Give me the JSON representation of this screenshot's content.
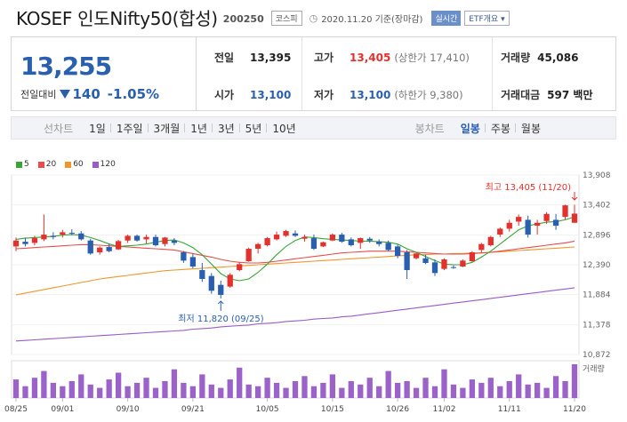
{
  "header": {
    "name": "KOSEF 인도Nifty50(합성)",
    "code": "200250",
    "market": "코스피",
    "date": "2020.11.20 기준(장마감)",
    "realtime": "실시간",
    "etf_info": "ETF개요 ▾"
  },
  "summary": {
    "price": "13,255",
    "change_label": "전일대비",
    "change": "140",
    "change_pct": "-1.05%",
    "prev_close_label": "전일",
    "prev_close": "13,395",
    "high_label": "고가",
    "high": "13,405",
    "upper_limit": "(상한가 17,410)",
    "volume_label": "거래량",
    "volume": "45,086",
    "open_label": "시가",
    "open": "13,100",
    "low_label": "저가",
    "low": "13,100",
    "lower_limit": "(하한가 9,380)",
    "amount_label": "거래대금",
    "amount": "597 백만"
  },
  "tabs": {
    "line_chart": "선차트",
    "line_periods": [
      "1일",
      "1주일",
      "3개월",
      "1년",
      "3년",
      "5년",
      "10년"
    ],
    "candle_chart": "봉차트",
    "candle_periods": [
      "일봉",
      "주봉",
      "월봉"
    ],
    "candle_selected": 0
  },
  "colors": {
    "up": "#e3312d",
    "down": "#2a5fb0",
    "ma5": "#3aa536",
    "ma20": "#e84d4d",
    "ma60": "#f0962c",
    "ma120": "#9a5bc7"
  },
  "chart_data": {
    "type": "candlestick",
    "legend": [
      "5",
      "20",
      "60",
      "120"
    ],
    "y_ticks": [
      "13,908",
      "13,402",
      "12,896",
      "12,390",
      "11,884",
      "11,378",
      "10,872"
    ],
    "y_range": [
      10872,
      13908
    ],
    "x_ticks": [
      {
        "label": "08/25",
        "index": 0
      },
      {
        "label": "09/01",
        "index": 5
      },
      {
        "label": "09/10",
        "index": 12
      },
      {
        "label": "09/21",
        "index": 19
      },
      {
        "label": "10/05",
        "index": 27
      },
      {
        "label": "10/15",
        "index": 34
      },
      {
        "label": "10/26",
        "index": 41
      },
      {
        "label": "11/02",
        "index": 46
      },
      {
        "label": "11/11",
        "index": 53
      },
      {
        "label": "11/20",
        "index": 60
      }
    ],
    "annotations": {
      "high": "최고 13,405 (11/20)",
      "low": "최저 11,820 (09/25)"
    },
    "volume_label": "거래량",
    "candles": [
      [
        12700,
        12850,
        12620,
        12800
      ],
      [
        12780,
        12850,
        12700,
        12740
      ],
      [
        12760,
        12880,
        12720,
        12840
      ],
      [
        12820,
        13240,
        12790,
        12900
      ],
      [
        12880,
        12940,
        12820,
        12860
      ],
      [
        12900,
        12980,
        12850,
        12940
      ],
      [
        12930,
        12990,
        12890,
        12920
      ],
      [
        12920,
        12960,
        12800,
        12820
      ],
      [
        12800,
        12830,
        12560,
        12580
      ],
      [
        12600,
        12700,
        12560,
        12680
      ],
      [
        12690,
        12750,
        12600,
        12620
      ],
      [
        12650,
        12810,
        12640,
        12790
      ],
      [
        12800,
        12900,
        12760,
        12880
      ],
      [
        12880,
        12900,
        12780,
        12800
      ],
      [
        12820,
        12900,
        12750,
        12860
      ],
      [
        12860,
        12900,
        12700,
        12720
      ],
      [
        12740,
        12860,
        12700,
        12850
      ],
      [
        12800,
        12840,
        12720,
        12760
      ],
      [
        12600,
        12620,
        12420,
        12460
      ],
      [
        12520,
        12580,
        12330,
        12360
      ],
      [
        12300,
        12420,
        12100,
        12150
      ],
      [
        12200,
        12250,
        11900,
        11950
      ],
      [
        12050,
        12120,
        11820,
        11880
      ],
      [
        12020,
        12250,
        12000,
        12220
      ],
      [
        12300,
        12430,
        12280,
        12400
      ],
      [
        12450,
        12680,
        12440,
        12660
      ],
      [
        12660,
        12760,
        12580,
        12740
      ],
      [
        12720,
        12860,
        12700,
        12840
      ],
      [
        12820,
        12950,
        12800,
        12900
      ],
      [
        12880,
        12980,
        12860,
        12960
      ],
      [
        12920,
        12970,
        12860,
        12880
      ],
      [
        12830,
        12900,
        12780,
        12860
      ],
      [
        12840,
        12900,
        12640,
        12660
      ],
      [
        12700,
        12780,
        12690,
        12770
      ],
      [
        12800,
        12920,
        12790,
        12900
      ],
      [
        12900,
        12930,
        12760,
        12780
      ],
      [
        12820,
        12850,
        12700,
        12720
      ],
      [
        12760,
        12850,
        12660,
        12840
      ],
      [
        12830,
        12860,
        12760,
        12800
      ],
      [
        12780,
        12820,
        12700,
        12740
      ],
      [
        12760,
        12800,
        12620,
        12640
      ],
      [
        12700,
        12730,
        12500,
        12540
      ],
      [
        12600,
        12640,
        12150,
        12300
      ],
      [
        12500,
        12600,
        12480,
        12580
      ],
      [
        12500,
        12560,
        12400,
        12420
      ],
      [
        12430,
        12480,
        12200,
        12250
      ],
      [
        12320,
        12500,
        12300,
        12480
      ],
      [
        12350,
        12380,
        12320,
        12340
      ],
      [
        12360,
        12480,
        12350,
        12460
      ],
      [
        12450,
        12620,
        12440,
        12600
      ],
      [
        12640,
        12760,
        12600,
        12740
      ],
      [
        12720,
        12880,
        12700,
        12860
      ],
      [
        12900,
        13020,
        12860,
        13000
      ],
      [
        13000,
        13150,
        12950,
        13100
      ],
      [
        13120,
        13240,
        13050,
        13200
      ],
      [
        13150,
        13220,
        12850,
        12900
      ],
      [
        13050,
        13150,
        12900,
        13100
      ],
      [
        13130,
        13280,
        13080,
        13250
      ],
      [
        13150,
        13250,
        12980,
        13050
      ],
      [
        13200,
        13405,
        13150,
        13395
      ],
      [
        13100,
        13405,
        13100,
        13255
      ]
    ],
    "ma5": [
      12820,
      12840,
      12850,
      12860,
      12870,
      12890,
      12900,
      12890,
      12850,
      12800,
      12740,
      12700,
      12710,
      12720,
      12740,
      12770,
      12800,
      12810,
      12760,
      12680,
      12560,
      12400,
      12240,
      12150,
      12120,
      12150,
      12260,
      12400,
      12560,
      12700,
      12800,
      12860,
      12850,
      12830,
      12820,
      12810,
      12800,
      12790,
      12790,
      12780,
      12770,
      12740,
      12660,
      12600,
      12530,
      12460,
      12400,
      12390,
      12390,
      12430,
      12520,
      12620,
      12740,
      12860,
      12980,
      13050,
      13080,
      13110,
      13120,
      13150,
      13200
    ],
    "ma20": [
      12660,
      12670,
      12680,
      12690,
      12700,
      12710,
      12720,
      12730,
      12730,
      12720,
      12710,
      12700,
      12690,
      12680,
      12670,
      12660,
      12650,
      12640,
      12610,
      12580,
      12550,
      12520,
      12480,
      12450,
      12430,
      12420,
      12420,
      12430,
      12450,
      12470,
      12490,
      12510,
      12530,
      12550,
      12570,
      12590,
      12600,
      12610,
      12620,
      12620,
      12620,
      12620,
      12610,
      12600,
      12590,
      12580,
      12570,
      12570,
      12570,
      12580,
      12590,
      12600,
      12620,
      12640,
      12660,
      12680,
      12700,
      12720,
      12740,
      12760,
      12790
    ],
    "ma60": [
      11880,
      11910,
      11940,
      11970,
      12000,
      12030,
      12060,
      12090,
      12120,
      12150,
      12170,
      12190,
      12210,
      12230,
      12250,
      12270,
      12290,
      12300,
      12310,
      12320,
      12330,
      12340,
      12350,
      12360,
      12370,
      12380,
      12390,
      12400,
      12410,
      12420,
      12430,
      12440,
      12450,
      12460,
      12470,
      12480,
      12490,
      12500,
      12510,
      12520,
      12530,
      12540,
      12550,
      12560,
      12560,
      12570,
      12570,
      12580,
      12580,
      12590,
      12590,
      12600,
      12610,
      12620,
      12630,
      12640,
      12650,
      12660,
      12670,
      12680,
      12690
    ],
    "ma120": [
      11100,
      11110,
      11120,
      11130,
      11140,
      11150,
      11160,
      11170,
      11180,
      11190,
      11200,
      11210,
      11220,
      11230,
      11240,
      11250,
      11260,
      11270,
      11280,
      11300,
      11310,
      11320,
      11340,
      11350,
      11360,
      11370,
      11390,
      11400,
      11410,
      11430,
      11440,
      11450,
      11470,
      11480,
      11490,
      11510,
      11520,
      11540,
      11560,
      11580,
      11600,
      11620,
      11640,
      11660,
      11680,
      11700,
      11720,
      11740,
      11760,
      11780,
      11800,
      11820,
      11840,
      11860,
      11880,
      11900,
      11920,
      11940,
      11960,
      11980,
      12000
    ],
    "volumes": [
      0.55,
      0.35,
      0.6,
      0.8,
      0.45,
      0.35,
      0.5,
      0.7,
      0.4,
      0.3,
      0.55,
      0.75,
      0.35,
      0.45,
      0.6,
      0.3,
      0.5,
      0.85,
      0.45,
      0.35,
      0.7,
      0.4,
      0.3,
      0.55,
      0.9,
      0.4,
      0.35,
      0.6,
      0.45,
      0.3,
      0.5,
      0.65,
      0.35,
      0.45,
      0.7,
      0.3,
      0.5,
      0.4,
      0.6,
      0.35,
      0.8,
      0.45,
      0.5,
      0.3,
      0.6,
      0.35,
      0.85,
      0.4,
      0.3,
      0.55,
      0.45,
      0.6,
      0.35,
      0.5,
      0.7,
      0.4,
      0.45,
      0.3,
      0.65,
      0.5,
      1.0
    ]
  }
}
